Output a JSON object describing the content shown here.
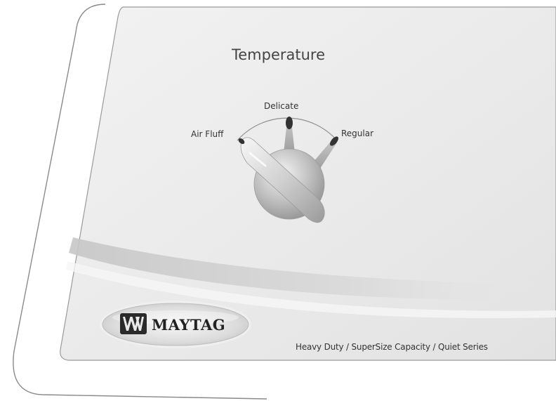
{
  "panel": {
    "title": "Temperature",
    "tagline": "Heavy Duty / SuperSize Capacity / Quiet Series"
  },
  "dial": {
    "settings": [
      "Air Fluff",
      "Delicate",
      "Regular"
    ],
    "labels": {
      "air_fluff": "Air Fluff",
      "delicate": "Delicate",
      "regular": "Regular"
    },
    "selected": "Air Fluff"
  },
  "brand": {
    "name": "MAYTAG"
  },
  "colors": {
    "panel": "#ececec",
    "outline": "#8a8a8a",
    "swoosh": "#cfcfcf",
    "knob": "#a9a9a9",
    "indicator": "#333333",
    "badge_bg": "#d6d6d6",
    "logo_mark": "#2a2a2a"
  }
}
